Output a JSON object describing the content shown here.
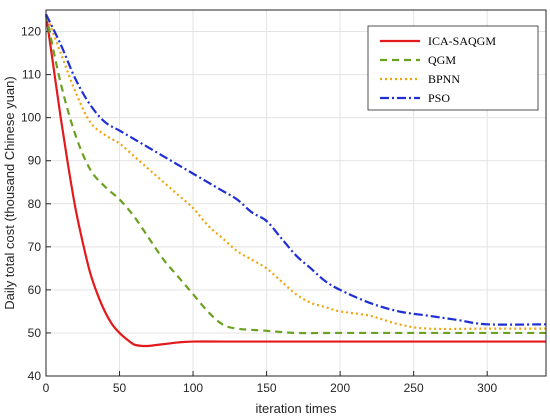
{
  "chart_data": {
    "type": "line",
    "title": "",
    "xlabel": "iteration times",
    "ylabel": "Daily total cost (thousand Chinese yuan)",
    "xlim": [
      0,
      340
    ],
    "ylim": [
      40,
      125
    ],
    "xticks": [
      0,
      50,
      100,
      150,
      200,
      250,
      300
    ],
    "yticks": [
      40,
      50,
      60,
      70,
      80,
      90,
      100,
      110,
      120
    ],
    "grid": true,
    "legend_position": "top-right",
    "series": [
      {
        "name": "ICA-SAQGM",
        "color": "#e31a1c",
        "dash": "solid",
        "points": [
          [
            0,
            124
          ],
          [
            5,
            112
          ],
          [
            10,
            100
          ],
          [
            15,
            89
          ],
          [
            20,
            79
          ],
          [
            25,
            71
          ],
          [
            30,
            64
          ],
          [
            35,
            59
          ],
          [
            40,
            55
          ],
          [
            45,
            52
          ],
          [
            50,
            50
          ],
          [
            55,
            48.5
          ],
          [
            60,
            47.3
          ],
          [
            65,
            47
          ],
          [
            70,
            47
          ],
          [
            80,
            47.4
          ],
          [
            90,
            47.8
          ],
          [
            100,
            48
          ],
          [
            120,
            48
          ],
          [
            150,
            48
          ],
          [
            200,
            48
          ],
          [
            250,
            48
          ],
          [
            300,
            48
          ],
          [
            340,
            48
          ]
        ]
      },
      {
        "name": "QGM",
        "color": "#6aa121",
        "dash": "dashed",
        "points": [
          [
            0,
            124
          ],
          [
            10,
            108
          ],
          [
            20,
            96
          ],
          [
            30,
            88
          ],
          [
            40,
            84
          ],
          [
            50,
            81
          ],
          [
            60,
            77
          ],
          [
            70,
            72
          ],
          [
            80,
            67
          ],
          [
            90,
            63
          ],
          [
            100,
            59
          ],
          [
            110,
            55
          ],
          [
            120,
            52
          ],
          [
            130,
            51
          ],
          [
            150,
            50.5
          ],
          [
            170,
            50
          ],
          [
            200,
            50
          ],
          [
            250,
            50
          ],
          [
            300,
            50
          ],
          [
            340,
            50
          ]
        ]
      },
      {
        "name": "BPNN",
        "color": "#f0a30a",
        "dash": "dotted",
        "points": [
          [
            0,
            124
          ],
          [
            10,
            115
          ],
          [
            20,
            106
          ],
          [
            30,
            99
          ],
          [
            40,
            96
          ],
          [
            50,
            94
          ],
          [
            60,
            91
          ],
          [
            70,
            88
          ],
          [
            80,
            85
          ],
          [
            90,
            82
          ],
          [
            100,
            79
          ],
          [
            110,
            75
          ],
          [
            120,
            72
          ],
          [
            130,
            69
          ],
          [
            140,
            67
          ],
          [
            150,
            65
          ],
          [
            160,
            62
          ],
          [
            170,
            59
          ],
          [
            180,
            57
          ],
          [
            190,
            56
          ],
          [
            200,
            55
          ],
          [
            220,
            54
          ],
          [
            240,
            52
          ],
          [
            260,
            51
          ],
          [
            300,
            51
          ],
          [
            340,
            51
          ]
        ]
      },
      {
        "name": "PSO",
        "color": "#1f2fd6",
        "dash": "dashdot",
        "points": [
          [
            0,
            124
          ],
          [
            10,
            117
          ],
          [
            20,
            109
          ],
          [
            30,
            103
          ],
          [
            40,
            99
          ],
          [
            50,
            97
          ],
          [
            60,
            95
          ],
          [
            70,
            93
          ],
          [
            80,
            91
          ],
          [
            90,
            89
          ],
          [
            100,
            87
          ],
          [
            110,
            85
          ],
          [
            120,
            83
          ],
          [
            130,
            81
          ],
          [
            140,
            78
          ],
          [
            150,
            76
          ],
          [
            160,
            72
          ],
          [
            170,
            68
          ],
          [
            180,
            65
          ],
          [
            190,
            62
          ],
          [
            200,
            60
          ],
          [
            220,
            57
          ],
          [
            240,
            55
          ],
          [
            260,
            54
          ],
          [
            280,
            53
          ],
          [
            300,
            52
          ],
          [
            340,
            52
          ]
        ]
      }
    ]
  }
}
